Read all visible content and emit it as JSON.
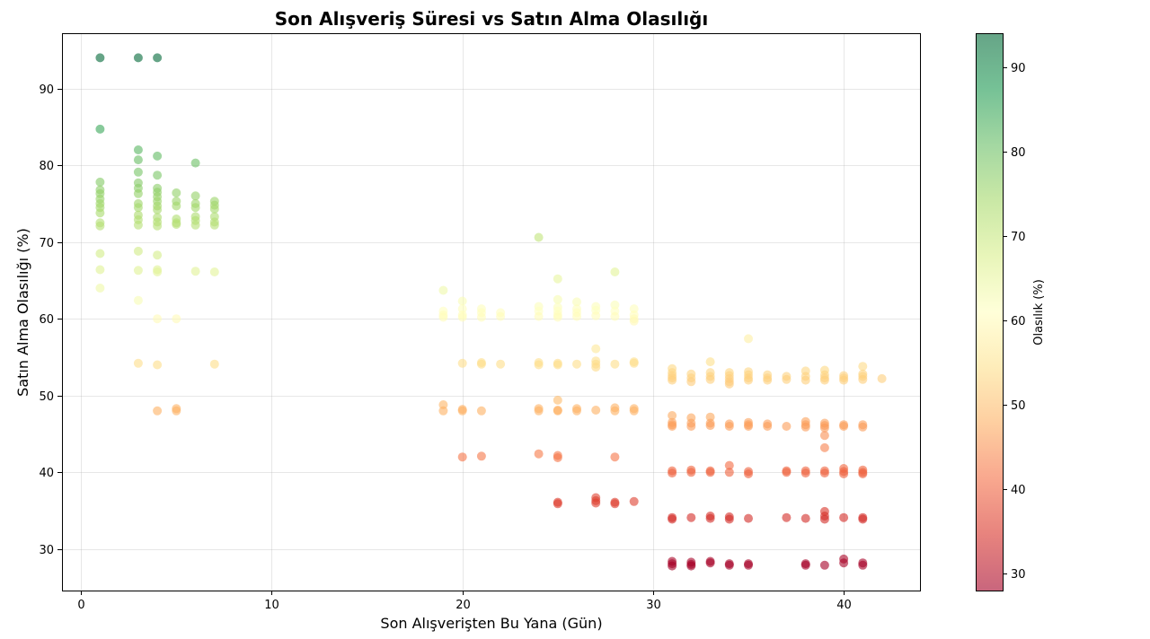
{
  "chart_data": {
    "type": "scatter",
    "title": "Son Alışveriş Süresi vs Satın Alma Olasılığı",
    "xlabel": "Son Alışverişten Bu Yana (Gün)",
    "ylabel": "Satın Alma Olasılığı (%)",
    "xlim": [
      -1,
      44
    ],
    "ylim": [
      24.6,
      97.2
    ],
    "xticks": [
      0,
      10,
      20,
      30,
      40
    ],
    "yticks": [
      30,
      40,
      50,
      60,
      70,
      80,
      90
    ],
    "grid": true,
    "colormap": "RdYlGn",
    "marker_alpha": 0.6,
    "colorbar": {
      "label": "Olasılık (%)",
      "range": [
        28,
        94
      ],
      "ticks": [
        30,
        40,
        50,
        60,
        70,
        80,
        90
      ]
    },
    "points": [
      [
        1,
        94
      ],
      [
        3,
        94
      ],
      [
        4,
        94
      ],
      [
        1,
        84.7
      ],
      [
        1,
        77.8
      ],
      [
        1,
        76.8
      ],
      [
        1,
        76.3
      ],
      [
        1,
        75.6
      ],
      [
        1,
        75
      ],
      [
        1,
        74.5
      ],
      [
        1,
        73.8
      ],
      [
        1,
        72.5
      ],
      [
        1,
        72.1
      ],
      [
        1,
        68.5
      ],
      [
        1,
        66.4
      ],
      [
        1,
        64
      ],
      [
        3,
        82
      ],
      [
        3,
        80.7
      ],
      [
        3,
        79.1
      ],
      [
        3,
        77.7
      ],
      [
        3,
        77
      ],
      [
        3,
        76.3
      ],
      [
        3,
        75
      ],
      [
        3,
        74.5
      ],
      [
        3,
        73.5
      ],
      [
        3,
        72.9
      ],
      [
        3,
        72.2
      ],
      [
        3,
        68.8
      ],
      [
        3,
        66.3
      ],
      [
        3,
        62.4
      ],
      [
        3,
        54.2
      ],
      [
        4,
        81.2
      ],
      [
        4,
        78.7
      ],
      [
        4,
        77
      ],
      [
        4,
        76.5
      ],
      [
        4,
        75.9
      ],
      [
        4,
        75.3
      ],
      [
        4,
        74.7
      ],
      [
        4,
        74.2
      ],
      [
        4,
        73.2
      ],
      [
        4,
        72.6
      ],
      [
        4,
        72.1
      ],
      [
        4,
        68.3
      ],
      [
        4,
        66.4
      ],
      [
        4,
        66.1
      ],
      [
        4,
        60
      ],
      [
        4,
        54
      ],
      [
        4,
        48
      ],
      [
        5,
        76.4
      ],
      [
        5,
        75.3
      ],
      [
        5,
        74.7
      ],
      [
        5,
        73
      ],
      [
        5,
        72.5
      ],
      [
        5,
        72.3
      ],
      [
        5,
        60
      ],
      [
        5,
        48.3
      ],
      [
        5,
        48
      ],
      [
        6,
        80.3
      ],
      [
        6,
        76
      ],
      [
        6,
        75
      ],
      [
        6,
        74.5
      ],
      [
        6,
        73.3
      ],
      [
        6,
        72.8
      ],
      [
        6,
        72.2
      ],
      [
        6,
        66.2
      ],
      [
        7,
        75.3
      ],
      [
        7,
        74.8
      ],
      [
        7,
        74.3
      ],
      [
        7,
        73.3
      ],
      [
        7,
        72.6
      ],
      [
        7,
        72.2
      ],
      [
        7,
        66.1
      ],
      [
        7,
        54.1
      ],
      [
        19,
        63.7
      ],
      [
        19,
        61
      ],
      [
        19,
        60.5
      ],
      [
        19,
        60.2
      ],
      [
        19,
        48.8
      ],
      [
        19,
        48
      ],
      [
        20,
        62.3
      ],
      [
        20,
        61.3
      ],
      [
        20,
        60.5
      ],
      [
        20,
        60.2
      ],
      [
        20,
        54.2
      ],
      [
        20,
        48.2
      ],
      [
        20,
        48
      ],
      [
        20,
        42
      ],
      [
        21,
        61.3
      ],
      [
        21,
        60.8
      ],
      [
        21,
        60.2
      ],
      [
        21,
        54.3
      ],
      [
        21,
        54.1
      ],
      [
        21,
        48
      ],
      [
        21,
        42.1
      ],
      [
        22,
        60.8
      ],
      [
        22,
        60.3
      ],
      [
        22,
        54.1
      ],
      [
        24,
        70.6
      ],
      [
        24,
        61.6
      ],
      [
        24,
        61
      ],
      [
        24,
        60.3
      ],
      [
        24,
        54.3
      ],
      [
        24,
        54
      ],
      [
        24,
        48.3
      ],
      [
        24,
        48
      ],
      [
        24,
        42.4
      ],
      [
        25,
        65.2
      ],
      [
        25,
        62.5
      ],
      [
        25,
        61.5
      ],
      [
        25,
        61
      ],
      [
        25,
        60.5
      ],
      [
        25,
        60.2
      ],
      [
        25,
        54.2
      ],
      [
        25,
        54
      ],
      [
        25,
        49.4
      ],
      [
        25,
        48.1
      ],
      [
        25,
        48
      ],
      [
        25,
        42.2
      ],
      [
        25,
        41.9
      ],
      [
        25,
        36.1
      ],
      [
        25,
        35.9
      ],
      [
        26,
        62.2
      ],
      [
        26,
        61.3
      ],
      [
        26,
        60.8
      ],
      [
        26,
        60.3
      ],
      [
        26,
        54.1
      ],
      [
        26,
        48.3
      ],
      [
        26,
        48
      ],
      [
        27,
        61.6
      ],
      [
        27,
        61.1
      ],
      [
        27,
        60.4
      ],
      [
        27,
        56.1
      ],
      [
        27,
        54.5
      ],
      [
        27,
        54.1
      ],
      [
        27,
        53.7
      ],
      [
        27,
        48.1
      ],
      [
        27,
        36.7
      ],
      [
        27,
        36.3
      ],
      [
        27,
        36
      ],
      [
        28,
        66.1
      ],
      [
        28,
        61.8
      ],
      [
        28,
        61
      ],
      [
        28,
        60.3
      ],
      [
        28,
        54.1
      ],
      [
        28,
        48.4
      ],
      [
        28,
        48
      ],
      [
        28,
        42
      ],
      [
        28,
        36.1
      ],
      [
        28,
        35.9
      ],
      [
        29,
        61.3
      ],
      [
        29,
        60.5
      ],
      [
        29,
        60
      ],
      [
        29,
        59.7
      ],
      [
        29,
        54.4
      ],
      [
        29,
        54.2
      ],
      [
        29,
        48.3
      ],
      [
        29,
        48
      ],
      [
        29,
        36.2
      ],
      [
        31,
        53.5
      ],
      [
        31,
        53
      ],
      [
        31,
        52.6
      ],
      [
        31,
        52.3
      ],
      [
        31,
        52
      ],
      [
        31,
        47.4
      ],
      [
        31,
        46.5
      ],
      [
        31,
        46.2
      ],
      [
        31,
        46
      ],
      [
        31,
        40.2
      ],
      [
        31,
        39.9
      ],
      [
        31,
        34.1
      ],
      [
        31,
        33.9
      ],
      [
        31,
        28.4
      ],
      [
        31,
        28.1
      ],
      [
        31,
        27.8
      ],
      [
        32,
        52.8
      ],
      [
        32,
        52.3
      ],
      [
        32,
        51.8
      ],
      [
        32,
        47.1
      ],
      [
        32,
        46.4
      ],
      [
        32,
        46
      ],
      [
        32,
        40.3
      ],
      [
        32,
        40
      ],
      [
        32,
        34.1
      ],
      [
        32,
        28.3
      ],
      [
        32,
        28
      ],
      [
        32,
        27.8
      ],
      [
        33,
        54.4
      ],
      [
        33,
        53
      ],
      [
        33,
        52.5
      ],
      [
        33,
        52.1
      ],
      [
        33,
        47.2
      ],
      [
        33,
        46.4
      ],
      [
        33,
        46.1
      ],
      [
        33,
        40.2
      ],
      [
        33,
        40
      ],
      [
        33,
        34.3
      ],
      [
        33,
        34
      ],
      [
        33,
        28.4
      ],
      [
        33,
        28.2
      ],
      [
        34,
        53
      ],
      [
        34,
        52.6
      ],
      [
        34,
        52.2
      ],
      [
        34,
        51.8
      ],
      [
        34,
        51.5
      ],
      [
        34,
        46.3
      ],
      [
        34,
        46
      ],
      [
        34,
        40.9
      ],
      [
        34,
        40
      ],
      [
        34,
        34.2
      ],
      [
        34,
        33.9
      ],
      [
        34,
        28.1
      ],
      [
        34,
        27.9
      ],
      [
        35,
        57.4
      ],
      [
        35,
        53.1
      ],
      [
        35,
        52.7
      ],
      [
        35,
        52.3
      ],
      [
        35,
        52
      ],
      [
        35,
        46.5
      ],
      [
        35,
        46.2
      ],
      [
        35,
        46
      ],
      [
        35,
        40.1
      ],
      [
        35,
        39.8
      ],
      [
        35,
        34
      ],
      [
        35,
        28.1
      ],
      [
        35,
        27.9
      ],
      [
        36,
        52.7
      ],
      [
        36,
        52.3
      ],
      [
        36,
        52
      ],
      [
        36,
        46.3
      ],
      [
        36,
        46
      ],
      [
        37,
        52.5
      ],
      [
        37,
        52.1
      ],
      [
        37,
        46
      ],
      [
        37,
        40.2
      ],
      [
        37,
        40
      ],
      [
        37,
        34.1
      ],
      [
        38,
        53.2
      ],
      [
        38,
        52.5
      ],
      [
        38,
        52
      ],
      [
        38,
        46.6
      ],
      [
        38,
        46.2
      ],
      [
        38,
        45.9
      ],
      [
        38,
        40.2
      ],
      [
        38,
        39.9
      ],
      [
        38,
        34
      ],
      [
        38,
        28.1
      ],
      [
        38,
        27.9
      ],
      [
        39,
        53.3
      ],
      [
        39,
        52.7
      ],
      [
        39,
        52.3
      ],
      [
        39,
        52
      ],
      [
        39,
        46.4
      ],
      [
        39,
        46.1
      ],
      [
        39,
        45.8
      ],
      [
        39,
        44.8
      ],
      [
        39,
        43.2
      ],
      [
        39,
        40.2
      ],
      [
        39,
        39.9
      ],
      [
        39,
        34.9
      ],
      [
        39,
        34.3
      ],
      [
        39,
        33.9
      ],
      [
        39,
        27.9
      ],
      [
        40,
        52.6
      ],
      [
        40,
        52.3
      ],
      [
        40,
        52
      ],
      [
        40,
        46.2
      ],
      [
        40,
        46
      ],
      [
        40,
        40.5
      ],
      [
        40,
        40.1
      ],
      [
        40,
        39.8
      ],
      [
        40,
        34.1
      ],
      [
        40,
        28.7
      ],
      [
        40,
        28.2
      ],
      [
        41,
        53.8
      ],
      [
        41,
        52.8
      ],
      [
        41,
        52.5
      ],
      [
        41,
        52.1
      ],
      [
        41,
        46.2
      ],
      [
        41,
        45.9
      ],
      [
        41,
        40.3
      ],
      [
        41,
        40
      ],
      [
        41,
        39.8
      ],
      [
        41,
        34.1
      ],
      [
        41,
        33.9
      ],
      [
        41,
        28.2
      ],
      [
        41,
        27.9
      ],
      [
        42,
        52.2
      ]
    ]
  }
}
